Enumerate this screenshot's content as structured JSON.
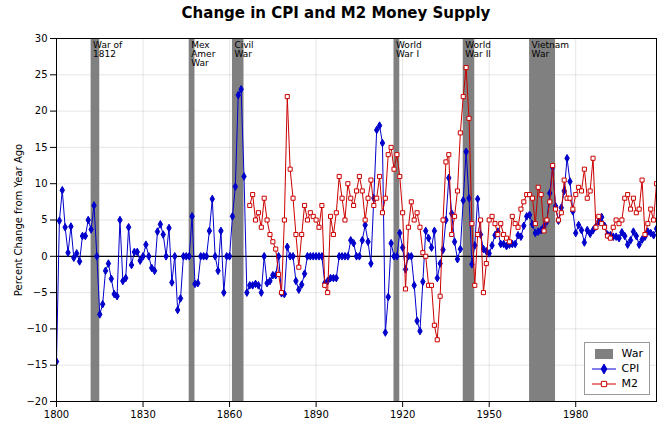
{
  "chart_data": {
    "type": "line",
    "title": "Change in CPI and M2 Money Supply",
    "ylabel": "Percent Change from Year Ago",
    "xlim": [
      1800,
      2008
    ],
    "ylim": [
      -20,
      30
    ],
    "xticks": [
      1800,
      1830,
      1860,
      1890,
      1920,
      1950,
      1980
    ],
    "yticks": [
      -20,
      -15,
      -10,
      -5,
      0,
      5,
      10,
      15,
      20,
      25,
      30
    ],
    "grid": true,
    "legend": "lower right",
    "reference_lines": [
      0
    ],
    "shaded_regions": {
      "name": "War",
      "color": "#808080",
      "spans": [
        {
          "start": 1812,
          "end": 1815,
          "label": "War of\n1812"
        },
        {
          "start": 1846,
          "end": 1848,
          "label": "Mex\nAmer\nWar"
        },
        {
          "start": 1861,
          "end": 1865,
          "label": "Civil\nWar"
        },
        {
          "start": 1917,
          "end": 1919,
          "label": "World\nWar I"
        },
        {
          "start": 1941,
          "end": 1945,
          "label": "World\nWar II"
        },
        {
          "start": 1964,
          "end": 1973,
          "label": "Vietnam\nWar"
        }
      ]
    },
    "series": [
      {
        "name": "CPI",
        "color": "#0000cc",
        "marker": "diamond",
        "x": [
          1800,
          1801,
          1802,
          1803,
          1804,
          1805,
          1806,
          1807,
          1808,
          1809,
          1810,
          1811,
          1812,
          1813,
          1814,
          1815,
          1816,
          1817,
          1818,
          1819,
          1820,
          1821,
          1822,
          1823,
          1824,
          1825,
          1826,
          1827,
          1828,
          1829,
          1830,
          1831,
          1832,
          1833,
          1834,
          1835,
          1836,
          1837,
          1838,
          1839,
          1840,
          1841,
          1842,
          1843,
          1844,
          1845,
          1846,
          1847,
          1848,
          1849,
          1850,
          1851,
          1852,
          1853,
          1854,
          1855,
          1856,
          1857,
          1858,
          1859,
          1860,
          1861,
          1862,
          1863,
          1864,
          1865,
          1866,
          1867,
          1868,
          1869,
          1870,
          1871,
          1872,
          1873,
          1874,
          1875,
          1876,
          1877,
          1878,
          1879,
          1880,
          1881,
          1882,
          1883,
          1884,
          1885,
          1886,
          1887,
          1888,
          1889,
          1890,
          1891,
          1892,
          1893,
          1894,
          1895,
          1896,
          1897,
          1898,
          1899,
          1900,
          1901,
          1902,
          1903,
          1904,
          1905,
          1906,
          1907,
          1908,
          1909,
          1910,
          1911,
          1912,
          1913,
          1914,
          1915,
          1916,
          1917,
          1918,
          1919,
          1920,
          1921,
          1922,
          1923,
          1924,
          1925,
          1926,
          1927,
          1928,
          1929,
          1930,
          1931,
          1932,
          1933,
          1934,
          1935,
          1936,
          1937,
          1938,
          1939,
          1940,
          1941,
          1942,
          1943,
          1944,
          1945,
          1946,
          1947,
          1948,
          1949,
          1950,
          1951,
          1952,
          1953,
          1954,
          1955,
          1956,
          1957,
          1958,
          1959,
          1960,
          1961,
          1962,
          1963,
          1964,
          1965,
          1966,
          1967,
          1968,
          1969,
          1970,
          1971,
          1972,
          1973,
          1974,
          1975,
          1976,
          1977,
          1978,
          1979,
          1980,
          1981,
          1982,
          1983,
          1984,
          1985,
          1986,
          1987,
          1988,
          1989,
          1990,
          1991,
          1992,
          1993,
          1994,
          1995,
          1996,
          1997,
          1998,
          1999,
          2000,
          2001,
          2002,
          2003,
          2004,
          2005,
          2006,
          2007,
          2008
        ],
        "values": [
          -14.5,
          4.9,
          9.1,
          4.0,
          0.5,
          4.1,
          -0.2,
          0.4,
          -0.7,
          2.8,
          2.8,
          5.0,
          3.7,
          7.0,
          0.0,
          -8.0,
          -6.6,
          -2.0,
          -1.0,
          -3.1,
          -5.2,
          -5.5,
          5.0,
          -3.4,
          -3.0,
          4.0,
          -1.2,
          0.6,
          0.6,
          -0.6,
          0.0,
          1.6,
          0.0,
          -1.6,
          -2.0,
          3.4,
          4.4,
          3.0,
          0.0,
          3.9,
          -3.6,
          0.0,
          -7.4,
          -5.8,
          0.0,
          0.0,
          0.0,
          5.5,
          -3.8,
          -3.7,
          0.0,
          0.0,
          0.0,
          3.5,
          7.9,
          0.0,
          -2.0,
          3.5,
          -5.0,
          0.0,
          0.0,
          5.5,
          9.6,
          22.2,
          23.0,
          11.0,
          -5.0,
          -4.0,
          -4.0,
          -3.8,
          -4.0,
          -5.0,
          0.0,
          -3.7,
          -3.4,
          -2.6,
          -2.6,
          0.0,
          -5.1,
          -5.2,
          1.3,
          0.0,
          0.0,
          -3.4,
          -4.6,
          -3.9,
          -2.4,
          0.0,
          0.0,
          0.0,
          0.0,
          0.0,
          0.0,
          -3.7,
          -3.4,
          -3.0,
          -3.0,
          -3.0,
          0.0,
          0.0,
          0.0,
          0.0,
          2.2,
          1.8,
          0.0,
          0.0,
          2.2,
          4.3,
          2.0,
          -1.0,
          8.0,
          17.4,
          18.0,
          15.6,
          -10.5,
          -5.6,
          1.8,
          0.0,
          0.0,
          3.2,
          1.2,
          -1.8,
          0.0,
          0.0,
          -4.0,
          -8.9,
          -10.3,
          -3.5,
          3.5,
          2.5,
          1.2,
          3.5,
          -3.0,
          -1.0,
          0.9,
          5.0,
          10.8,
          5.9,
          2.0,
          -0.4,
          1.0,
          7.7,
          14.4,
          8.0,
          -1.1,
          1.5,
          7.9,
          3.0,
          1.0,
          0.7,
          0.4,
          1.5,
          2.9,
          3.4,
          1.7,
          1.7,
          1.4,
          1.6,
          1.7,
          1.7,
          2.9,
          2.7,
          4.2,
          5.5,
          5.7,
          4.4,
          3.2,
          3.4,
          3.6,
          4.1,
          4.8,
          8.7,
          12.3,
          6.9,
          4.9,
          6.7,
          9.0,
          13.5,
          10.3,
          6.2,
          3.2,
          4.3,
          3.6,
          1.9,
          3.6,
          3.1,
          3.6,
          4.1,
          4.8,
          5.4,
          4.2,
          3.0,
          2.9,
          2.7,
          2.7,
          2.5,
          3.3,
          2.8,
          1.6,
          2.2,
          3.4,
          2.8,
          1.6,
          2.3,
          2.7,
          3.4,
          3.2,
          2.9,
          3.8
        ]
      },
      {
        "name": "M2",
        "color": "#cc0000",
        "marker": "square-open",
        "x": [
          1867,
          1868,
          1869,
          1870,
          1871,
          1872,
          1873,
          1874,
          1875,
          1876,
          1877,
          1878,
          1879,
          1880,
          1881,
          1882,
          1883,
          1884,
          1885,
          1886,
          1887,
          1888,
          1889,
          1890,
          1891,
          1892,
          1893,
          1894,
          1895,
          1896,
          1897,
          1898,
          1899,
          1900,
          1901,
          1902,
          1903,
          1904,
          1905,
          1906,
          1907,
          1908,
          1909,
          1910,
          1911,
          1912,
          1913,
          1914,
          1915,
          1916,
          1917,
          1918,
          1919,
          1920,
          1921,
          1922,
          1923,
          1924,
          1925,
          1926,
          1927,
          1928,
          1929,
          1930,
          1931,
          1932,
          1933,
          1934,
          1935,
          1936,
          1937,
          1938,
          1939,
          1940,
          1941,
          1942,
          1943,
          1944,
          1945,
          1946,
          1947,
          1948,
          1949,
          1950,
          1951,
          1952,
          1953,
          1954,
          1955,
          1956,
          1957,
          1958,
          1959,
          1960,
          1961,
          1962,
          1963,
          1964,
          1965,
          1966,
          1967,
          1968,
          1969,
          1970,
          1971,
          1972,
          1973,
          1974,
          1975,
          1976,
          1977,
          1978,
          1979,
          1980,
          1981,
          1982,
          1983,
          1984,
          1985,
          1986,
          1987,
          1988,
          1989,
          1990,
          1991,
          1992,
          1993,
          1994,
          1995,
          1996,
          1997,
          1998,
          1999,
          2000,
          2001,
          2002,
          2003,
          2004,
          2005,
          2006,
          2007,
          2008
        ],
        "values": [
          7.0,
          8.5,
          5.0,
          6.0,
          4.0,
          8.0,
          5.0,
          3.0,
          2.0,
          1.0,
          -2.5,
          -5.0,
          5.0,
          22.0,
          12.0,
          8.0,
          3.0,
          -1.5,
          3.0,
          7.0,
          5.0,
          6.0,
          5.5,
          5.0,
          4.0,
          7.0,
          -4.0,
          -5.0,
          5.5,
          3.0,
          6.0,
          11.0,
          8.0,
          5.0,
          10.0,
          8.0,
          7.0,
          9.0,
          11.0,
          9.0,
          5.0,
          8.0,
          10.5,
          7.0,
          8.0,
          11.0,
          6.0,
          8.0,
          14.0,
          15.0,
          12.0,
          14.0,
          11.0,
          6.0,
          -4.5,
          4.0,
          7.5,
          5.0,
          6.0,
          4.0,
          0.5,
          0.0,
          -4.0,
          -4.0,
          -9.5,
          -11.5,
          -5.5,
          5.0,
          13.0,
          14.0,
          3.0,
          5.5,
          9.0,
          17.0,
          22.0,
          26.0,
          19.0,
          4.5,
          -4.0,
          3.0,
          5.0,
          -5.0,
          -1.0,
          5.0,
          5.5,
          4.5,
          3.0,
          4.5,
          3.0,
          2.5,
          2.0,
          5.5,
          4.5,
          4.0,
          6.5,
          7.5,
          8.5,
          8.5,
          8.0,
          4.5,
          9.5,
          8.5,
          3.5,
          5.0,
          7.5,
          12.5,
          6.5,
          5.0,
          6.0,
          10.5,
          8.0,
          8.0,
          6.5,
          8.5,
          9.5,
          9.0,
          12.0,
          8.0,
          9.0,
          13.5,
          4.0,
          5.5,
          4.5,
          4.0,
          2.8,
          2.5,
          4.0,
          5.0,
          4.5,
          5.0,
          8.0,
          8.5,
          6.5,
          8.0,
          6.0,
          6.5,
          10.5,
          3.0,
          4.5,
          6.5,
          5.0,
          10.0
        ]
      }
    ]
  }
}
